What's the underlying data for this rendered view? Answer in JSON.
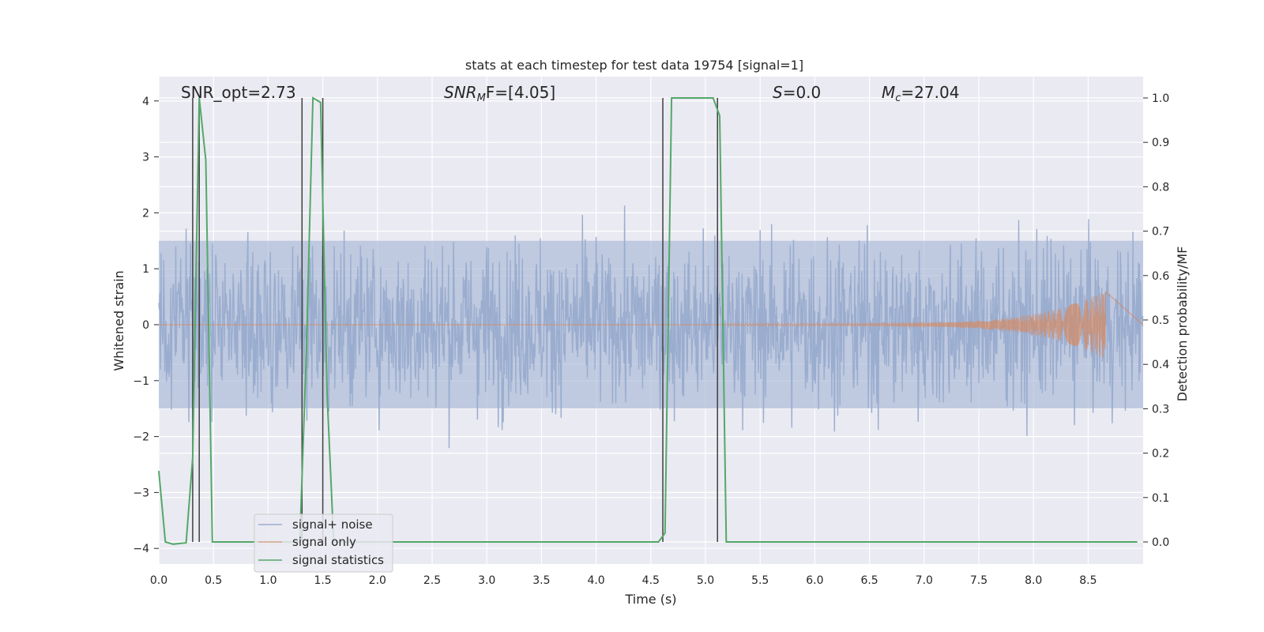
{
  "chart_data": {
    "type": "line",
    "title": "stats at each timestep for test data 19754 [signal=1]",
    "xlabel": "Time (s)",
    "ylabel": "Whitened strain",
    "y2label": "Detection probability/MF",
    "xlim": [
      0.0,
      9.0
    ],
    "ylim": [
      -4.4,
      4.4
    ],
    "y2lim": [
      -0.047,
      1.047
    ],
    "x_ticks": [
      "0.0",
      "0.5",
      "1.0",
      "1.5",
      "2.0",
      "2.5",
      "3.0",
      "3.5",
      "4.0",
      "4.5",
      "5.0",
      "5.5",
      "6.0",
      "6.5",
      "7.0",
      "7.5",
      "8.0",
      "8.5"
    ],
    "y_ticks": [
      "4",
      "3",
      "2",
      "1",
      "0",
      "−1",
      "−2",
      "−3",
      "−4"
    ],
    "y2_ticks": [
      "1.0",
      "0.9",
      "0.8",
      "0.7",
      "0.6",
      "0.5",
      "0.4",
      "0.3",
      "0.2",
      "0.1",
      "0.0"
    ],
    "grid": true,
    "legend_position": "lower-left",
    "legend": [
      "signal+ noise",
      "signal only",
      "signal statistics"
    ],
    "colors": {
      "noise": "#9aadcf",
      "signal": "#dd8452",
      "stats": "#55a868",
      "vlines": "#404040",
      "background": "#eaeaf2",
      "grid": "#ffffff"
    },
    "annotations": {
      "snr_opt": "SNR_opt=2.73",
      "snr_mf_main": "SNR",
      "snr_mf_sub": "M",
      "snr_mf_rest": "F=[4.05]",
      "s_italic": "S",
      "s_rest": "=0.0",
      "mc_main": "M",
      "mc_sub": "c",
      "mc_rest": "=27.04"
    },
    "series": [
      {
        "name": "signal statistics",
        "axis": "right",
        "x": [
          0.0,
          0.06,
          0.13,
          0.25,
          0.31,
          0.37,
          0.43,
          0.49,
          1.29,
          1.35,
          1.41,
          1.48,
          1.54,
          1.6,
          4.57,
          4.63,
          4.69,
          5.07,
          5.13,
          5.19,
          8.95
        ],
        "y": [
          0.16,
          0.0,
          -0.005,
          -0.002,
          0.19,
          1.0,
          0.86,
          0.0,
          0.0,
          0.43,
          1.0,
          0.99,
          0.33,
          0.0,
          0.0,
          0.02,
          1.0,
          1.0,
          0.96,
          0.0,
          0.0
        ]
      },
      {
        "name": "signal only",
        "axis": "left",
        "chirp": {
          "start": 5.2,
          "end": 8.66,
          "amp_end": 0.6
        }
      },
      {
        "name": "signal+ noise",
        "axis": "left",
        "band_std": 1.0,
        "spike_max": 4.0
      }
    ],
    "vlines_x": [
      0.31,
      0.37,
      1.31,
      1.5,
      4.61,
      5.11
    ]
  }
}
